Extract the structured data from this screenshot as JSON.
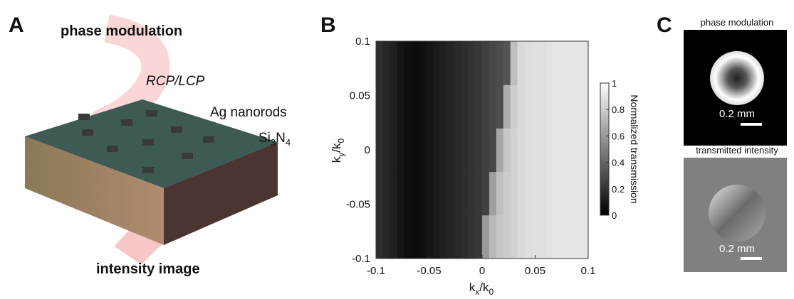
{
  "panel_a": {
    "letter": "A",
    "top_label": "phase modulation",
    "polarization": "RCP/LCP",
    "nanorods": "Ag nanorods",
    "substrate": [
      "Si",
      "3",
      "N",
      "4"
    ],
    "bottom_label": "intensity image"
  },
  "panel_b": {
    "letter": "B"
  },
  "panel_c": {
    "letter": "C",
    "top_title": "phase modulation",
    "top_scale": "0.2 mm",
    "bottom_title": "transmitted intensity",
    "bottom_scale": "0.2 mm"
  },
  "chart_data": {
    "type": "heatmap",
    "xlabel": [
      "k",
      "x",
      "/k",
      "0"
    ],
    "ylabel": [
      "k",
      "y",
      "/k",
      "0"
    ],
    "xlim": [
      -0.1,
      0.1
    ],
    "ylim": [
      -0.1,
      0.1
    ],
    "xticks": [
      -0.1,
      -0.05,
      0,
      0.05,
      0.1
    ],
    "yticks": [
      -0.1,
      -0.05,
      0,
      0.05,
      0.1
    ],
    "colorbar": {
      "label": "Normalized transmission",
      "lim": [
        0,
        1
      ],
      "ticks": [
        0,
        0.2,
        0.4,
        0.6,
        0.8,
        1
      ]
    },
    "values": [
      [
        0.18,
        0.15,
        0.12,
        0.08,
        0.06,
        0.05,
        0.06,
        0.08,
        0.1,
        0.12,
        0.14,
        0.16,
        0.18,
        0.2,
        0.22,
        0.6,
        0.72,
        0.78,
        0.8,
        0.82,
        0.85,
        0.87,
        0.88,
        0.88,
        0.89,
        0.9,
        0.9,
        0.9,
        0.9,
        0.9
      ],
      [
        0.18,
        0.15,
        0.12,
        0.08,
        0.06,
        0.05,
        0.06,
        0.08,
        0.1,
        0.12,
        0.14,
        0.16,
        0.18,
        0.2,
        0.22,
        0.25,
        0.62,
        0.75,
        0.8,
        0.82,
        0.85,
        0.87,
        0.88,
        0.88,
        0.89,
        0.9,
        0.9,
        0.9,
        0.9,
        0.9
      ],
      [
        0.18,
        0.15,
        0.12,
        0.08,
        0.06,
        0.05,
        0.06,
        0.08,
        0.1,
        0.12,
        0.14,
        0.16,
        0.18,
        0.2,
        0.22,
        0.25,
        0.28,
        0.65,
        0.78,
        0.82,
        0.85,
        0.87,
        0.88,
        0.88,
        0.89,
        0.9,
        0.9,
        0.9,
        0.9,
        0.9
      ],
      [
        0.18,
        0.15,
        0.12,
        0.08,
        0.06,
        0.05,
        0.06,
        0.08,
        0.1,
        0.12,
        0.14,
        0.16,
        0.18,
        0.2,
        0.22,
        0.25,
        0.28,
        0.3,
        0.68,
        0.8,
        0.85,
        0.87,
        0.88,
        0.88,
        0.89,
        0.9,
        0.9,
        0.9,
        0.9,
        0.9
      ],
      [
        0.18,
        0.15,
        0.12,
        0.08,
        0.06,
        0.05,
        0.06,
        0.08,
        0.1,
        0.12,
        0.14,
        0.16,
        0.18,
        0.2,
        0.22,
        0.25,
        0.28,
        0.3,
        0.33,
        0.75,
        0.85,
        0.87,
        0.88,
        0.88,
        0.89,
        0.9,
        0.9,
        0.9,
        0.9,
        0.9
      ]
    ]
  }
}
